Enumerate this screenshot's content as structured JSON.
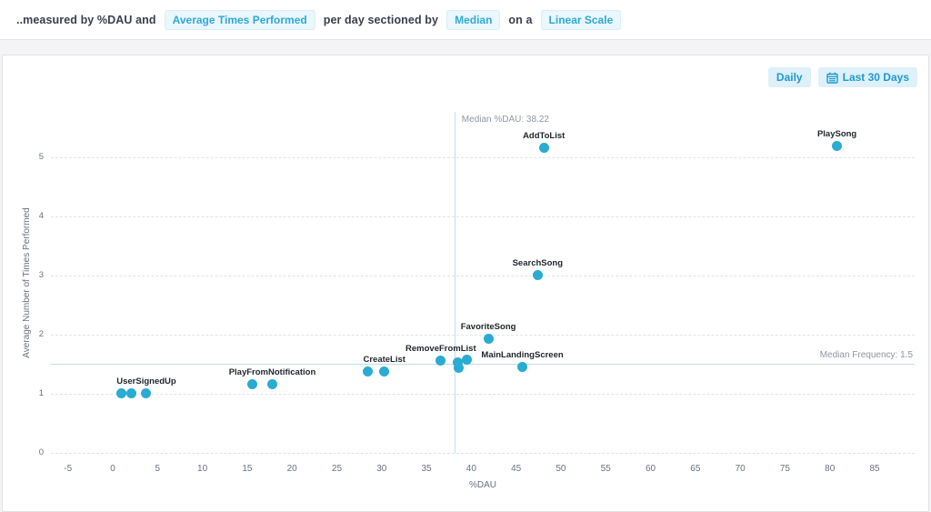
{
  "header": {
    "prefix": "..measured by %DAU and",
    "metric_selector": "Average Times Performed",
    "middle": "per day sectioned by",
    "section_selector": "Median",
    "connector": "on a",
    "scale_selector": "Linear Scale"
  },
  "toolbar": {
    "interval_button": "Daily",
    "date_range_button": "Last 30 Days",
    "date_range_icon": "calendar-icon"
  },
  "colors": {
    "accent_cyan": "#2fa9d6",
    "button_cyan": "#1e9bcf",
    "dot": "#2aabd2",
    "median_line": "#bfdfee",
    "pill_bg": "#eaf7fd",
    "button_bg": "#def0f9"
  },
  "chart_data": {
    "type": "scatter",
    "xlabel": "%DAU",
    "ylabel": "Average Number of Times Performed",
    "x_ticks": [
      -5,
      0,
      5,
      10,
      15,
      20,
      25,
      30,
      35,
      40,
      45,
      50,
      55,
      60,
      65,
      70,
      75,
      80,
      85
    ],
    "y_ticks": [
      0,
      1,
      2,
      3,
      4,
      5
    ],
    "xlim": [
      -6.9,
      89.5
    ],
    "ylim": [
      0,
      5.87
    ],
    "grid": "horizontal-dashed",
    "median_x": {
      "label": "Median %DAU: 38.22",
      "value": 38.22
    },
    "median_y": {
      "label": "Median Frequency: 1.5",
      "value": 1.5
    },
    "series": [
      {
        "name": "UserSignedUp",
        "points": [
          [
            1.0,
            1.0
          ],
          [
            2.1,
            1.0
          ],
          [
            3.75,
            1.0
          ]
        ],
        "label_anchor": 2
      },
      {
        "name": "PlayFromNotification",
        "points": [
          [
            15.6,
            1.15
          ],
          [
            17.8,
            1.15
          ]
        ],
        "label_anchor": 1
      },
      {
        "name": "CreateList",
        "points": [
          [
            28.5,
            1.38
          ],
          [
            30.3,
            1.38
          ]
        ],
        "label_anchor": 1
      },
      {
        "name": "RemoveFromList",
        "points": [
          [
            36.6,
            1.56
          ],
          [
            38.5,
            1.52
          ],
          [
            38.6,
            1.44
          ],
          [
            39.5,
            1.58
          ]
        ],
        "label_anchor": 0
      },
      {
        "name": "FavoriteSong",
        "points": [
          [
            41.9,
            1.92
          ]
        ],
        "label_anchor": 0
      },
      {
        "name": "MainLandingScreen",
        "points": [
          [
            45.7,
            1.45
          ]
        ],
        "label_anchor": 0
      },
      {
        "name": "SearchSong",
        "points": [
          [
            47.4,
            3.0
          ]
        ],
        "label_anchor": 0
      },
      {
        "name": "AddToList",
        "points": [
          [
            48.1,
            5.15
          ]
        ],
        "label_anchor": 0
      },
      {
        "name": "PlaySong",
        "points": [
          [
            80.8,
            5.19
          ]
        ],
        "label_anchor": 0
      }
    ]
  }
}
